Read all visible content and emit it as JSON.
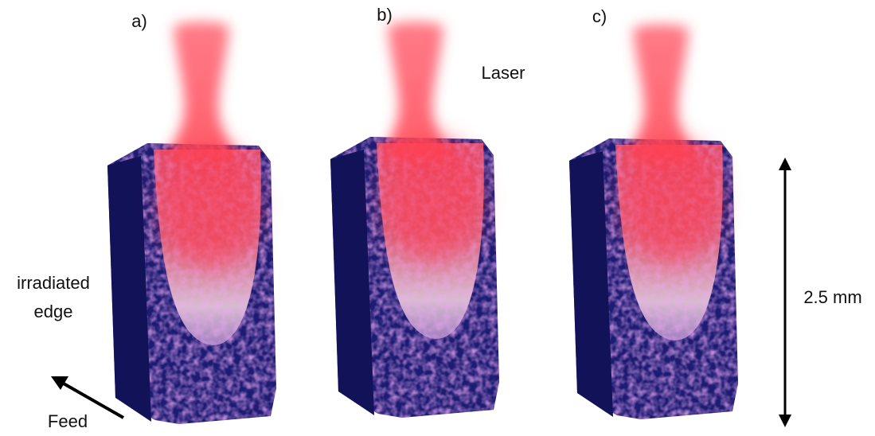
{
  "panels": [
    {
      "label": "a)"
    },
    {
      "label": "b)"
    },
    {
      "label": "c)"
    }
  ],
  "laser_label": "Laser",
  "edge_label": [
    "irradiated",
    "edge"
  ],
  "feed_label": "Feed",
  "scale_label": "2.5 mm"
}
